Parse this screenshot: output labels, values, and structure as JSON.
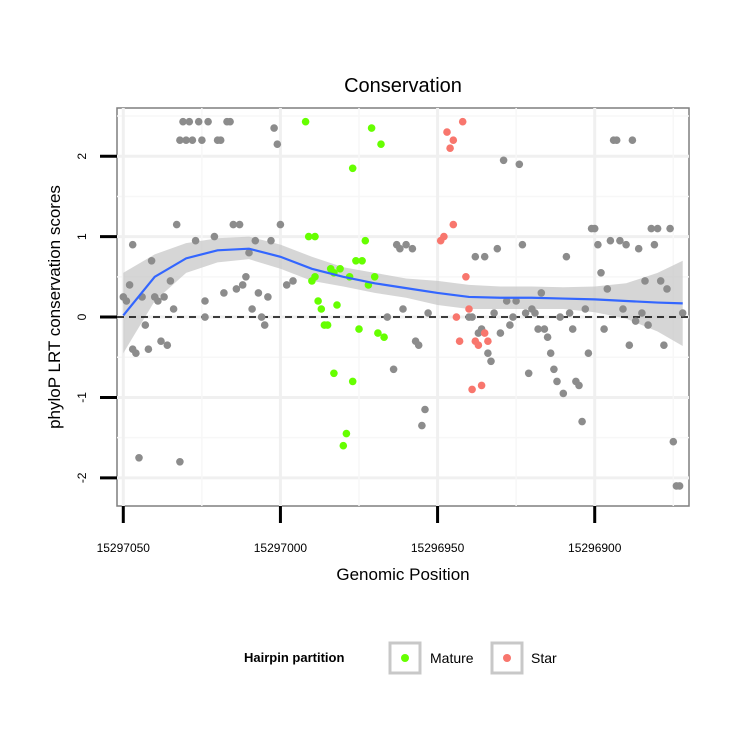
{
  "chart_data": {
    "type": "scatter",
    "title": "Conservation",
    "xlabel": "Genomic Position",
    "ylabel": "phyloP LRT conservation scores",
    "x_reversed": true,
    "xlim": [
      15297052,
      15296870
    ],
    "ylim": [
      -2.35,
      2.6
    ],
    "x_ticks": [
      15297050,
      15297000,
      15296950,
      15296900
    ],
    "x_tick_labels": [
      "15297050",
      "15297000",
      "15296950",
      "15296900"
    ],
    "y_ticks": [
      2,
      1,
      0,
      -1,
      -2
    ],
    "y_tick_labels": [
      "2",
      "1",
      "0",
      "-1",
      "-2"
    ],
    "grid": true,
    "reference_line": {
      "y": 0,
      "style": "dashed"
    },
    "legend": {
      "title": "Hairpin partition",
      "position": "bottom",
      "entries": [
        {
          "label": "Mature",
          "color": "#66ff00"
        },
        {
          "label": "Star",
          "color": "#f8766d"
        }
      ]
    },
    "colors": {
      "other": "#8c8c8c",
      "Mature": "#66ff00",
      "Star": "#f8766d",
      "smooth": "#3366ff",
      "band": "#c8c8c8"
    },
    "series": [
      {
        "name": "",
        "points": [
          [
            15297050,
            0.25
          ],
          [
            15297049,
            0.2
          ],
          [
            15297048,
            0.4
          ],
          [
            15297047,
            0.9
          ],
          [
            15297047,
            -0.4
          ],
          [
            15297046,
            -0.45
          ],
          [
            15297045,
            -1.75
          ],
          [
            15297044,
            0.25
          ],
          [
            15297043,
            -0.1
          ],
          [
            15297042,
            -0.4
          ],
          [
            15297041,
            0.7
          ],
          [
            15297040,
            0.25
          ],
          [
            15297039,
            0.2
          ],
          [
            15297038,
            -0.3
          ],
          [
            15297037,
            0.25
          ],
          [
            15297036,
            -0.35
          ],
          [
            15297035,
            0.45
          ],
          [
            15297034,
            0.1
          ],
          [
            15297033,
            1.15
          ],
          [
            15297032,
            2.2
          ],
          [
            15297032,
            -1.8
          ],
          [
            15297031,
            2.43
          ],
          [
            15297030,
            2.2
          ],
          [
            15297029,
            2.43
          ],
          [
            15297028,
            2.2
          ],
          [
            15297027,
            0.95
          ],
          [
            15297026,
            2.43
          ],
          [
            15297025,
            2.2
          ],
          [
            15297024,
            0.2
          ],
          [
            15297024,
            0.0
          ],
          [
            15297023,
            2.43
          ],
          [
            15297021,
            1.0
          ],
          [
            15297020,
            2.2
          ],
          [
            15297019,
            2.2
          ],
          [
            15297018,
            0.3
          ],
          [
            15297017,
            2.43
          ],
          [
            15297016,
            2.43
          ],
          [
            15297015,
            1.15
          ],
          [
            15297014,
            0.35
          ],
          [
            15297013,
            1.15
          ],
          [
            15297012,
            0.4
          ],
          [
            15297011,
            0.5
          ],
          [
            15297010,
            0.8
          ],
          [
            15297009,
            0.1
          ],
          [
            15297008,
            0.95
          ],
          [
            15297007,
            0.3
          ],
          [
            15297006,
            0.0
          ],
          [
            15297005,
            -0.1
          ],
          [
            15297004,
            0.25
          ],
          [
            15297003,
            0.95
          ],
          [
            15297002,
            2.35
          ],
          [
            15297001,
            2.15
          ],
          [
            15297000,
            1.15
          ],
          [
            15296998,
            0.4
          ],
          [
            15296996,
            0.45
          ],
          [
            15296966,
            0.0
          ],
          [
            15296964,
            -0.65
          ],
          [
            15296963,
            0.9
          ],
          [
            15296962,
            0.85
          ],
          [
            15296961,
            0.1
          ],
          [
            15296960,
            0.9
          ],
          [
            15296958,
            0.85
          ],
          [
            15296957,
            -0.3
          ],
          [
            15296956,
            -0.35
          ],
          [
            15296955,
            -1.35
          ],
          [
            15296954,
            -1.15
          ],
          [
            15296953,
            0.05
          ],
          [
            15296940,
            0.0
          ],
          [
            15296939,
            0.0
          ],
          [
            15296938,
            0.75
          ],
          [
            15296937,
            -0.2
          ],
          [
            15296936,
            -0.15
          ],
          [
            15296935,
            0.75
          ],
          [
            15296934,
            -0.45
          ],
          [
            15296933,
            -0.55
          ],
          [
            15296932,
            0.05
          ],
          [
            15296931,
            0.85
          ],
          [
            15296930,
            -0.2
          ],
          [
            15296929,
            1.95
          ],
          [
            15296928,
            0.2
          ],
          [
            15296927,
            -0.1
          ],
          [
            15296926,
            0.0
          ],
          [
            15296925,
            0.2
          ],
          [
            15296924,
            1.9
          ],
          [
            15296923,
            0.9
          ],
          [
            15296922,
            0.05
          ],
          [
            15296921,
            -0.7
          ],
          [
            15296920,
            0.1
          ],
          [
            15296919,
            0.05
          ],
          [
            15296918,
            -0.15
          ],
          [
            15296917,
            0.3
          ],
          [
            15296916,
            -0.15
          ],
          [
            15296915,
            -0.25
          ],
          [
            15296914,
            -0.45
          ],
          [
            15296913,
            -0.65
          ],
          [
            15296912,
            -0.8
          ],
          [
            15296911,
            0.0
          ],
          [
            15296910,
            -0.95
          ],
          [
            15296909,
            0.75
          ],
          [
            15296908,
            0.05
          ],
          [
            15296907,
            -0.15
          ],
          [
            15296906,
            -0.8
          ],
          [
            15296905,
            -0.85
          ],
          [
            15296904,
            -1.3
          ],
          [
            15296903,
            0.1
          ],
          [
            15296902,
            -0.45
          ],
          [
            15296901,
            1.1
          ],
          [
            15296900,
            1.1
          ],
          [
            15296899,
            0.9
          ],
          [
            15296898,
            0.55
          ],
          [
            15296897,
            -0.15
          ],
          [
            15296896,
            0.35
          ],
          [
            15296895,
            0.95
          ],
          [
            15296894,
            2.2
          ],
          [
            15296893,
            2.2
          ],
          [
            15296892,
            0.95
          ],
          [
            15296891,
            0.1
          ],
          [
            15296890,
            0.9
          ],
          [
            15296889,
            -0.35
          ],
          [
            15296888,
            2.2
          ],
          [
            15296887,
            -0.05
          ],
          [
            15296886,
            0.85
          ],
          [
            15296885,
            0.05
          ],
          [
            15296884,
            0.45
          ],
          [
            15296883,
            -0.1
          ],
          [
            15296882,
            1.1
          ],
          [
            15296881,
            0.9
          ],
          [
            15296880,
            1.1
          ],
          [
            15296879,
            0.45
          ],
          [
            15296878,
            -0.35
          ],
          [
            15296877,
            0.35
          ],
          [
            15296876,
            1.1
          ],
          [
            15296875,
            -1.55
          ],
          [
            15296874,
            -2.1
          ],
          [
            15296873,
            -2.1
          ],
          [
            15296872,
            0.05
          ]
        ]
      },
      {
        "name": "Mature",
        "points": [
          [
            15296992,
            2.43
          ],
          [
            15296991,
            1.0
          ],
          [
            15296990,
            0.45
          ],
          [
            15296989,
            0.5
          ],
          [
            15296989,
            1.0
          ],
          [
            15296988,
            0.2
          ],
          [
            15296987,
            0.1
          ],
          [
            15296986,
            -0.1
          ],
          [
            15296985,
            -0.1
          ],
          [
            15296984,
            0.6
          ],
          [
            15296983,
            0.55
          ],
          [
            15296983,
            -0.7
          ],
          [
            15296982,
            0.15
          ],
          [
            15296981,
            0.6
          ],
          [
            15296980,
            -1.6
          ],
          [
            15296979,
            -1.45
          ],
          [
            15296978,
            0.5
          ],
          [
            15296977,
            1.85
          ],
          [
            15296977,
            -0.8
          ],
          [
            15296976,
            0.7
          ],
          [
            15296975,
            -0.15
          ],
          [
            15296974,
            0.7
          ],
          [
            15296973,
            0.95
          ],
          [
            15296972,
            0.4
          ],
          [
            15296971,
            2.35
          ],
          [
            15296970,
            0.5
          ],
          [
            15296969,
            -0.2
          ],
          [
            15296968,
            2.15
          ],
          [
            15296967,
            -0.25
          ]
        ]
      },
      {
        "name": "Star",
        "points": [
          [
            15296949,
            0.95
          ],
          [
            15296948,
            1.0
          ],
          [
            15296947,
            2.3
          ],
          [
            15296946,
            2.1
          ],
          [
            15296945,
            2.2
          ],
          [
            15296945,
            1.15
          ],
          [
            15296944,
            0.0
          ],
          [
            15296943,
            -0.3
          ],
          [
            15296942,
            2.43
          ],
          [
            15296941,
            0.5
          ],
          [
            15296940,
            0.1
          ],
          [
            15296939,
            -0.9
          ],
          [
            15296938,
            -0.3
          ],
          [
            15296937,
            -0.35
          ],
          [
            15296936,
            -0.85
          ],
          [
            15296935,
            -0.2
          ],
          [
            15296934,
            -0.3
          ]
        ]
      }
    ],
    "smooth_curve": [
      [
        15297050,
        0.02,
        0.55,
        -0.45
      ],
      [
        15297040,
        0.5,
        0.78,
        0.2
      ],
      [
        15297030,
        0.73,
        0.92,
        0.55
      ],
      [
        15297020,
        0.83,
        0.98,
        0.68
      ],
      [
        15297010,
        0.85,
        1.0,
        0.72
      ],
      [
        15297000,
        0.75,
        0.9,
        0.6
      ],
      [
        15296990,
        0.6,
        0.75,
        0.45
      ],
      [
        15296980,
        0.5,
        0.62,
        0.38
      ],
      [
        15296970,
        0.42,
        0.55,
        0.3
      ],
      [
        15296960,
        0.36,
        0.48,
        0.24
      ],
      [
        15296950,
        0.3,
        0.45,
        0.15
      ],
      [
        15296940,
        0.25,
        0.4,
        0.1
      ],
      [
        15296930,
        0.24,
        0.38,
        0.1
      ],
      [
        15296920,
        0.24,
        0.38,
        0.1
      ],
      [
        15296910,
        0.23,
        0.37,
        0.1
      ],
      [
        15296900,
        0.22,
        0.38,
        0.06
      ],
      [
        15296890,
        0.2,
        0.42,
        -0.02
      ],
      [
        15296880,
        0.18,
        0.55,
        -0.18
      ],
      [
        15296872,
        0.17,
        0.7,
        -0.36
      ]
    ]
  }
}
